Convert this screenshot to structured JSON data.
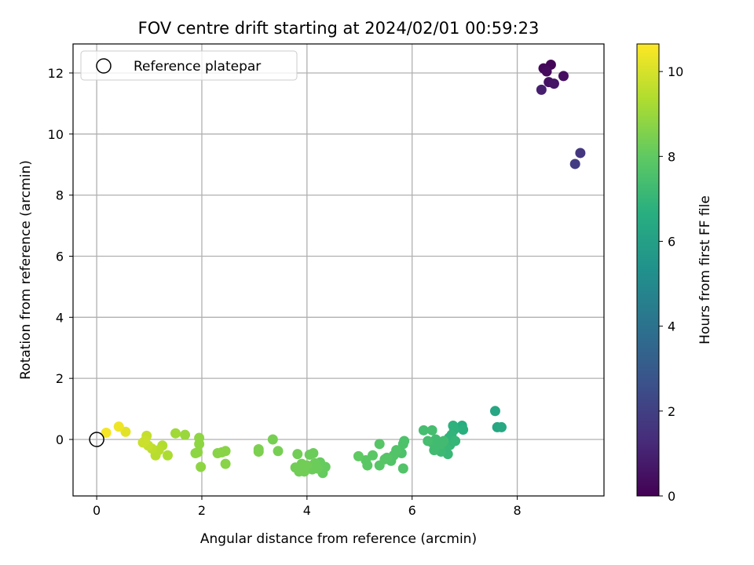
{
  "chart_data": {
    "type": "scatter",
    "title": "FOV centre drift starting at 2024/02/01 00:59:23",
    "xlabel": "Angular distance from reference (arcmin)",
    "ylabel": "Rotation from reference (arcmin)",
    "xlim": [
      -0.45,
      9.65
    ],
    "ylim": [
      -1.85,
      12.95
    ],
    "xticks": [
      0,
      2,
      4,
      6,
      8
    ],
    "yticks": [
      0,
      2,
      4,
      6,
      8,
      10,
      12
    ],
    "grid": true,
    "legend": {
      "placement": "top-left",
      "entries": [
        "Reference platepar"
      ]
    },
    "reference_point": {
      "x": 0,
      "y": 0,
      "label": "Reference platepar"
    },
    "colorbar": {
      "label": "Hours from first FF file",
      "range": [
        0,
        10.65
      ],
      "ticks": [
        0,
        2,
        4,
        6,
        8,
        10
      ],
      "colormap": "viridis"
    },
    "series": [
      {
        "points": [
          {
            "x": 8.64,
            "y": 12.27,
            "c": 0.1
          },
          {
            "x": 8.5,
            "y": 12.15,
            "c": 0.2
          },
          {
            "x": 8.56,
            "y": 12.05,
            "c": 0.3
          },
          {
            "x": 8.88,
            "y": 11.9,
            "c": 0.4
          },
          {
            "x": 8.6,
            "y": 11.7,
            "c": 0.5
          },
          {
            "x": 8.7,
            "y": 11.65,
            "c": 0.6
          },
          {
            "x": 8.46,
            "y": 11.45,
            "c": 0.9
          },
          {
            "x": 9.2,
            "y": 9.38,
            "c": 1.7
          },
          {
            "x": 9.1,
            "y": 9.02,
            "c": 1.9
          },
          {
            "x": 7.58,
            "y": 0.93,
            "c": 6.3
          },
          {
            "x": 7.62,
            "y": 0.4,
            "c": 6.3
          },
          {
            "x": 7.7,
            "y": 0.4,
            "c": 6.4
          },
          {
            "x": 6.95,
            "y": 0.45,
            "c": 6.6
          },
          {
            "x": 6.97,
            "y": 0.32,
            "c": 6.7
          },
          {
            "x": 6.78,
            "y": 0.45,
            "c": 6.8
          },
          {
            "x": 6.8,
            "y": 0.32,
            "c": 6.8
          },
          {
            "x": 6.75,
            "y": 0.15,
            "c": 6.9
          },
          {
            "x": 6.7,
            "y": 0.05,
            "c": 6.9
          },
          {
            "x": 6.82,
            "y": -0.05,
            "c": 7.0
          },
          {
            "x": 6.72,
            "y": -0.18,
            "c": 7.0
          },
          {
            "x": 6.65,
            "y": -0.3,
            "c": 7.1
          },
          {
            "x": 6.68,
            "y": -0.48,
            "c": 7.1
          },
          {
            "x": 6.55,
            "y": -0.4,
            "c": 7.2
          },
          {
            "x": 6.5,
            "y": -0.25,
            "c": 7.2
          },
          {
            "x": 6.42,
            "y": -0.35,
            "c": 7.3
          },
          {
            "x": 6.38,
            "y": -0.1,
            "c": 7.3
          },
          {
            "x": 6.45,
            "y": 0.0,
            "c": 7.3
          },
          {
            "x": 6.3,
            "y": -0.05,
            "c": 7.4
          },
          {
            "x": 6.22,
            "y": 0.3,
            "c": 7.4
          },
          {
            "x": 6.38,
            "y": 0.3,
            "c": 7.4
          },
          {
            "x": 6.55,
            "y": -0.15,
            "c": 7.3
          },
          {
            "x": 6.6,
            "y": -0.05,
            "c": 7.3
          },
          {
            "x": 5.85,
            "y": -0.05,
            "c": 7.6
          },
          {
            "x": 5.83,
            "y": -0.15,
            "c": 7.6
          },
          {
            "x": 5.8,
            "y": -0.45,
            "c": 7.6
          },
          {
            "x": 5.83,
            "y": -0.95,
            "c": 7.7
          },
          {
            "x": 5.7,
            "y": -0.35,
            "c": 7.7
          },
          {
            "x": 5.65,
            "y": -0.52,
            "c": 7.7
          },
          {
            "x": 5.6,
            "y": -0.7,
            "c": 7.7
          },
          {
            "x": 5.52,
            "y": -0.6,
            "c": 7.8
          },
          {
            "x": 5.48,
            "y": -0.65,
            "c": 7.8
          },
          {
            "x": 5.38,
            "y": -0.15,
            "c": 7.8
          },
          {
            "x": 5.38,
            "y": -0.85,
            "c": 7.8
          },
          {
            "x": 5.25,
            "y": -0.52,
            "c": 7.9
          },
          {
            "x": 5.15,
            "y": -0.85,
            "c": 7.9
          },
          {
            "x": 5.12,
            "y": -0.68,
            "c": 7.9
          },
          {
            "x": 4.98,
            "y": -0.55,
            "c": 8.0
          },
          {
            "x": 4.35,
            "y": -0.9,
            "c": 8.1
          },
          {
            "x": 4.3,
            "y": -1.1,
            "c": 8.1
          },
          {
            "x": 4.25,
            "y": -0.75,
            "c": 8.1
          },
          {
            "x": 4.2,
            "y": -0.95,
            "c": 8.2
          },
          {
            "x": 4.15,
            "y": -0.78,
            "c": 8.2
          },
          {
            "x": 4.12,
            "y": -0.45,
            "c": 8.2
          },
          {
            "x": 4.1,
            "y": -0.98,
            "c": 8.2
          },
          {
            "x": 4.05,
            "y": -0.5,
            "c": 8.2
          },
          {
            "x": 4.0,
            "y": -0.85,
            "c": 8.3
          },
          {
            "x": 3.95,
            "y": -1.05,
            "c": 8.3
          },
          {
            "x": 3.9,
            "y": -0.8,
            "c": 8.3
          },
          {
            "x": 3.85,
            "y": -1.05,
            "c": 8.3
          },
          {
            "x": 3.82,
            "y": -0.48,
            "c": 8.3
          },
          {
            "x": 3.78,
            "y": -0.92,
            "c": 8.3
          },
          {
            "x": 3.45,
            "y": -0.38,
            "c": 8.4
          },
          {
            "x": 3.35,
            "y": 0.0,
            "c": 8.4
          },
          {
            "x": 3.08,
            "y": -0.32,
            "c": 8.5
          },
          {
            "x": 3.08,
            "y": -0.4,
            "c": 8.5
          },
          {
            "x": 2.45,
            "y": -0.8,
            "c": 8.7
          },
          {
            "x": 2.45,
            "y": -0.38,
            "c": 8.7
          },
          {
            "x": 2.38,
            "y": -0.42,
            "c": 8.7
          },
          {
            "x": 2.3,
            "y": -0.45,
            "c": 8.7
          },
          {
            "x": 1.98,
            "y": -0.9,
            "c": 8.8
          },
          {
            "x": 1.95,
            "y": 0.05,
            "c": 8.8
          },
          {
            "x": 1.95,
            "y": -0.15,
            "c": 8.8
          },
          {
            "x": 1.92,
            "y": -0.42,
            "c": 8.8
          },
          {
            "x": 1.88,
            "y": -0.45,
            "c": 8.8
          },
          {
            "x": 1.68,
            "y": 0.15,
            "c": 9.0
          },
          {
            "x": 1.5,
            "y": 0.2,
            "c": 9.1
          },
          {
            "x": 1.35,
            "y": -0.52,
            "c": 9.3
          },
          {
            "x": 1.25,
            "y": -0.2,
            "c": 9.4
          },
          {
            "x": 1.18,
            "y": -0.35,
            "c": 9.5
          },
          {
            "x": 1.12,
            "y": -0.52,
            "c": 9.5
          },
          {
            "x": 1.05,
            "y": -0.3,
            "c": 9.6
          },
          {
            "x": 0.98,
            "y": -0.2,
            "c": 9.7
          },
          {
            "x": 0.95,
            "y": 0.12,
            "c": 9.7
          },
          {
            "x": 0.92,
            "y": -0.05,
            "c": 9.8
          },
          {
            "x": 0.88,
            "y": -0.1,
            "c": 9.8
          },
          {
            "x": 0.55,
            "y": 0.25,
            "c": 10.2
          },
          {
            "x": 0.42,
            "y": 0.42,
            "c": 10.4
          },
          {
            "x": 0.18,
            "y": 0.22,
            "c": 10.5
          }
        ]
      }
    ]
  }
}
